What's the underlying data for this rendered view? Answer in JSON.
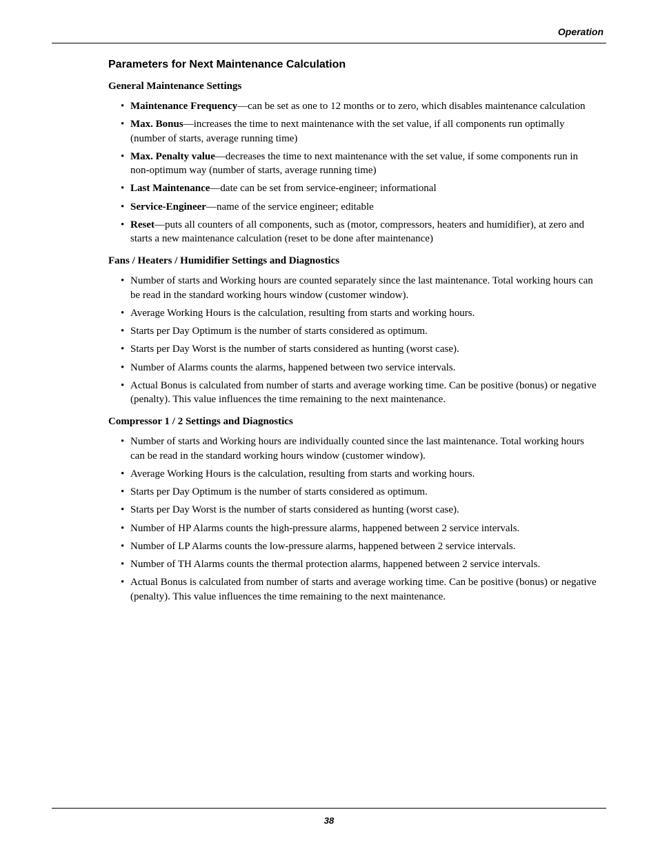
{
  "header": {
    "label": "Operation"
  },
  "section": {
    "title": "Parameters for Next Maintenance Calculation"
  },
  "sub1": {
    "title": "General Maintenance Settings",
    "items": [
      {
        "term": "Maintenance Frequency",
        "text": "—can be set as one to 12 months or to zero, which disables maintenance calculation"
      },
      {
        "term": "Max. Bonus",
        "text": "—increases the time to next maintenance with the set value, if all components run optimally (number of starts, average running time)"
      },
      {
        "term": "Max. Penalty value",
        "text": "—decreases the time to next maintenance with the set value, if some components run in non-optimum way (number of starts, average running time)"
      },
      {
        "term": "Last Maintenance",
        "text": "—date can be set from service-engineer; informational"
      },
      {
        "term": "Service-Engineer",
        "text": "—name of the service engineer; editable"
      },
      {
        "term": "Reset",
        "text": "—puts all counters of all components, such as (motor, compressors, heaters and humidifier), at zero and starts a new maintenance calculation (reset to be done after maintenance)"
      }
    ]
  },
  "sub2": {
    "title": "Fans / Heaters / Humidifier Settings and Diagnostics",
    "items": [
      "Number of starts and Working hours are counted separately since the last maintenance. Total working hours can be read in the standard working hours window (customer window).",
      "Average Working Hours is the calculation, resulting from starts and working hours.",
      "Starts per Day Optimum is the number of starts considered as optimum.",
      "Starts per Day Worst is the number of starts considered as hunting (worst case).",
      "Number of Alarms counts the alarms, happened between two service intervals.",
      "Actual Bonus is calculated from number of starts and average working time. Can be positive (bonus) or negative (penalty). This value influences the time remaining to the next maintenance."
    ]
  },
  "sub3": {
    "title": "Compressor 1 / 2 Settings and Diagnostics",
    "items": [
      "Number of starts and Working hours are individually counted since the last maintenance. Total working hours can be read in the standard working hours window (customer window).",
      "Average Working Hours is the calculation, resulting from starts and working hours.",
      "Starts per Day Optimum is the number of starts considered as optimum.",
      "Starts per Day Worst is the number of starts considered as hunting (worst case).",
      "Number of HP Alarms counts the high-pressure alarms, happened between 2 service intervals.",
      "Number of LP Alarms counts the low-pressure alarms, happened between 2 service intervals.",
      "Number of TH Alarms counts the thermal protection alarms, happened between 2 service intervals.",
      "Actual Bonus is calculated from number of starts and average working time. Can be positive (bonus) or negative (penalty). This value influences the time remaining to the next maintenance."
    ]
  },
  "footer": {
    "page_number": "38"
  }
}
